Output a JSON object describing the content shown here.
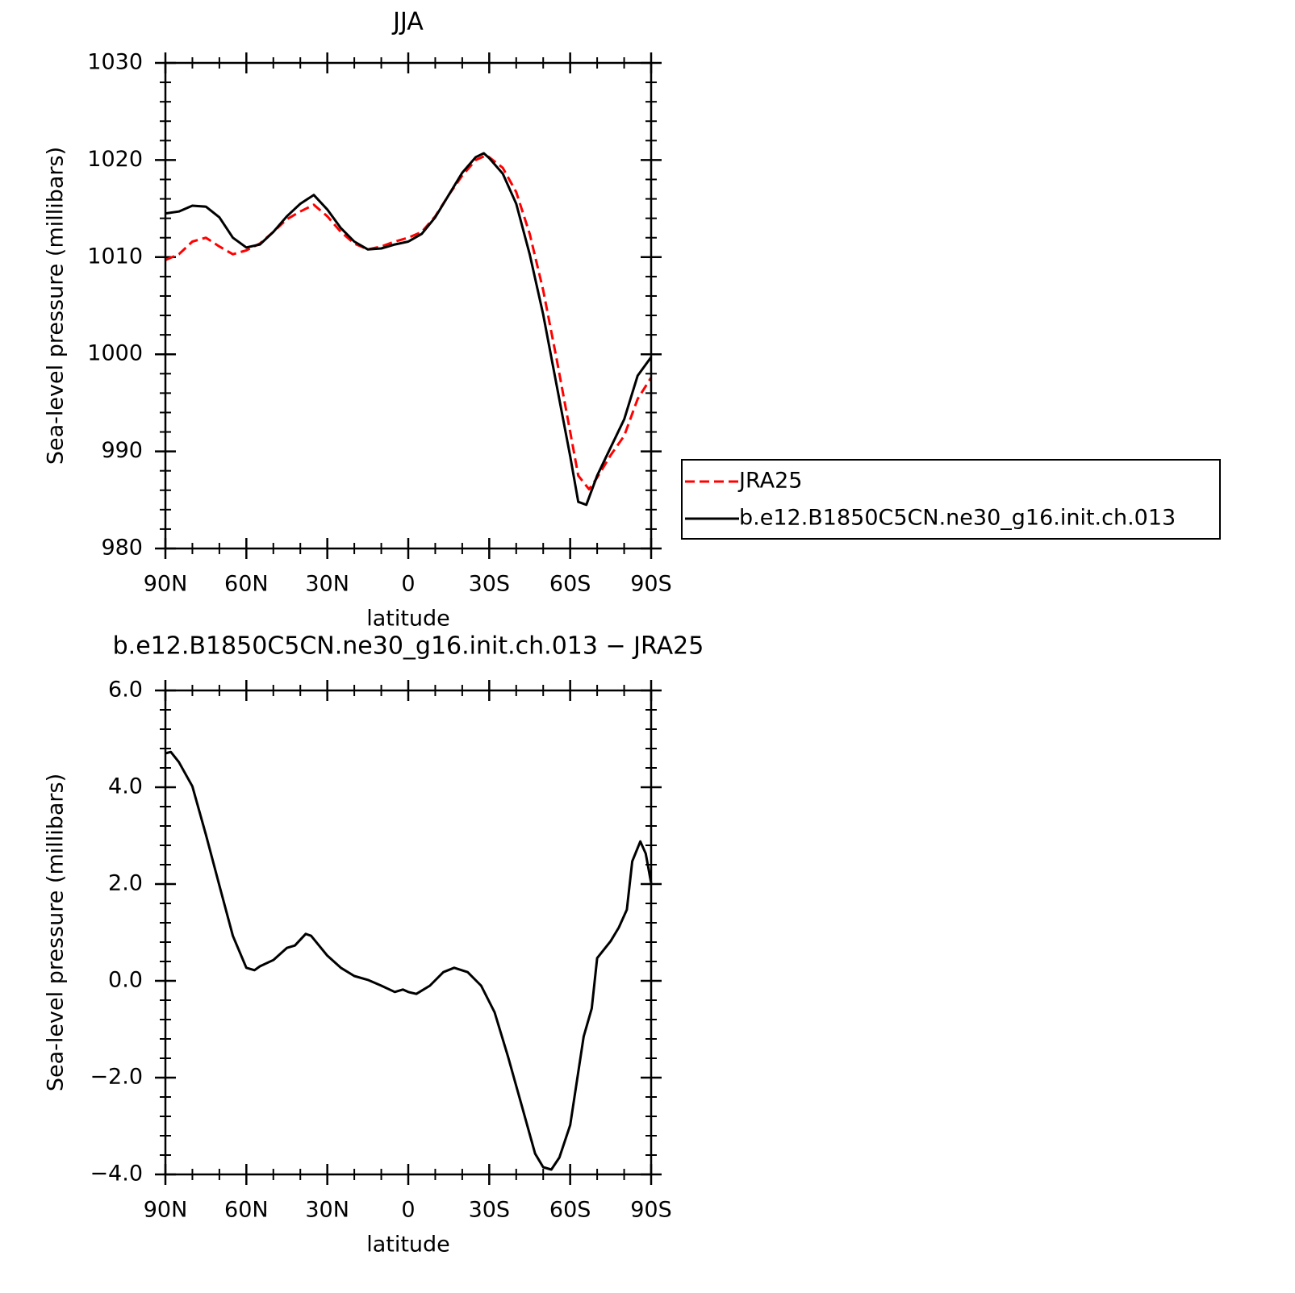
{
  "chart_data": [
    {
      "type": "line",
      "title": "JJA",
      "xlabel": "latitude",
      "ylabel": "Sea-level pressure (millibars)",
      "xlim": [
        90,
        -90
      ],
      "xticks": [
        {
          "value": 90,
          "label": "90N"
        },
        {
          "value": 60,
          "label": "60N"
        },
        {
          "value": 30,
          "label": "30N"
        },
        0,
        {
          "value": -30,
          "label": "30S"
        },
        {
          "value": -60,
          "label": "60S"
        },
        {
          "value": -90,
          "label": "90S"
        }
      ],
      "ylim": [
        980,
        1030
      ],
      "yticks": [
        980,
        990,
        1000,
        1010,
        1020,
        1030
      ],
      "legend": "right",
      "series": [
        {
          "name": "JRA25",
          "color": "#ff0000",
          "dash": true,
          "x": [
            90,
            85,
            80,
            75,
            70,
            65,
            60,
            55,
            50,
            45,
            40,
            35,
            30,
            25,
            20,
            15,
            10,
            5,
            0,
            -5,
            -10,
            -15,
            -20,
            -25,
            -29,
            -35,
            -40,
            -45,
            -50,
            -55,
            -60,
            -63,
            -67,
            -70,
            -75,
            -80,
            -85,
            -90
          ],
          "values": [
            1009.7,
            1010.3,
            1011.6,
            1012.0,
            1011.1,
            1010.3,
            1010.7,
            1011.4,
            1012.6,
            1013.9,
            1014.7,
            1015.4,
            1014.2,
            1012.6,
            1011.4,
            1010.8,
            1011.1,
            1011.6,
            1012.0,
            1012.6,
            1014.2,
            1016.4,
            1018.4,
            1020.0,
            1020.5,
            1019.2,
            1016.7,
            1012.4,
            1006.6,
            999.5,
            992.0,
            987.5,
            986.1,
            987.3,
            989.6,
            991.6,
            995.4,
            997.6
          ]
        },
        {
          "name": "b.e12.B1850C5CN.ne30_g16.init.ch.013",
          "color": "#000000",
          "dash": false,
          "x": [
            90,
            85,
            80,
            75,
            70,
            65,
            60,
            55,
            50,
            45,
            40,
            35,
            30,
            25,
            20,
            15,
            10,
            5,
            0,
            -5,
            -10,
            -15,
            -20,
            -25,
            -28,
            -30,
            -35,
            -40,
            -45,
            -50,
            -55,
            -60,
            -63,
            -66,
            -70,
            -75,
            -80,
            -85,
            -90
          ],
          "values": [
            1014.5,
            1014.7,
            1015.3,
            1015.2,
            1014.1,
            1012.0,
            1011.0,
            1011.3,
            1012.6,
            1014.2,
            1015.5,
            1016.4,
            1014.9,
            1013.0,
            1011.6,
            1010.8,
            1010.9,
            1011.3,
            1011.6,
            1012.4,
            1014.1,
            1016.4,
            1018.7,
            1020.3,
            1020.7,
            1020.2,
            1018.6,
            1015.5,
            1010.3,
            1004.1,
            996.8,
            989.5,
            984.8,
            984.5,
            987.5,
            990.4,
            993.3,
            997.8,
            999.7
          ]
        }
      ]
    },
    {
      "type": "line",
      "title": "b.e12.B1850C5CN.ne30_g16.init.ch.013 − JRA25",
      "xlabel": "latitude",
      "ylabel": "Sea-level pressure (millibars)",
      "xlim": [
        90,
        -90
      ],
      "xticks": [
        {
          "value": 90,
          "label": "90N"
        },
        {
          "value": 60,
          "label": "60N"
        },
        {
          "value": 30,
          "label": "30N"
        },
        0,
        {
          "value": -30,
          "label": "30S"
        },
        {
          "value": -60,
          "label": "60S"
        },
        {
          "value": -90,
          "label": "90S"
        }
      ],
      "ylim": [
        -4,
        6
      ],
      "yticks": [
        {
          "value": -4,
          "label": "−4.0"
        },
        {
          "value": -2,
          "label": "−2.0"
        },
        {
          "value": 0,
          "label": "0.0"
        },
        {
          "value": 2,
          "label": "2.0"
        },
        {
          "value": 4,
          "label": "4.0"
        },
        {
          "value": 6,
          "label": "6.0"
        }
      ],
      "series": [
        {
          "color": "#000000",
          "dash": false,
          "x": [
            90,
            88,
            85,
            80,
            75,
            70,
            65,
            60,
            57,
            55,
            50,
            45,
            42,
            38,
            36,
            30,
            25,
            20,
            15,
            10,
            5,
            2,
            0,
            -3,
            -8,
            -13,
            -17,
            -22,
            -27,
            -32,
            -37,
            -42,
            -47,
            -50,
            -53,
            -56,
            -60,
            -65,
            -68,
            -70,
            -75,
            -78,
            -81,
            -83,
            -86,
            -88,
            -90
          ],
          "values": [
            4.7,
            4.73,
            4.52,
            4.02,
            3.02,
            1.97,
            0.93,
            0.27,
            0.22,
            0.3,
            0.43,
            0.68,
            0.73,
            0.97,
            0.93,
            0.52,
            0.27,
            0.1,
            0.02,
            -0.1,
            -0.23,
            -0.18,
            -0.23,
            -0.27,
            -0.1,
            0.18,
            0.27,
            0.18,
            -0.1,
            -0.65,
            -1.57,
            -2.57,
            -3.57,
            -3.85,
            -3.9,
            -3.65,
            -2.98,
            -1.15,
            -0.57,
            0.47,
            0.82,
            1.1,
            1.47,
            2.47,
            2.88,
            2.63,
            2.02
          ]
        }
      ]
    }
  ]
}
